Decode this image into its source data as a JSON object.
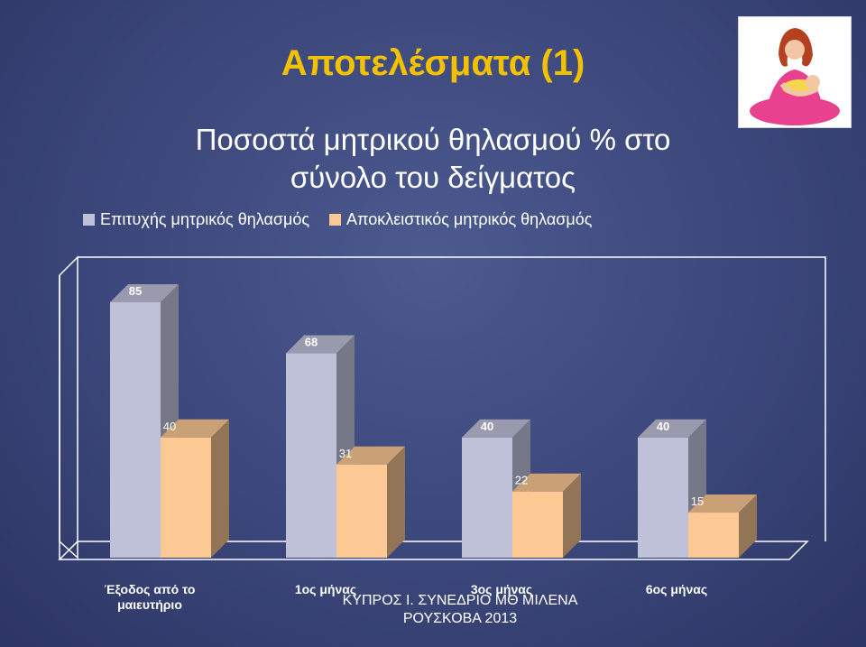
{
  "slide": {
    "title": "Αποτελέσματα (1)",
    "subtitle_line1": "Ποσοστά μητρικού θηλασμού % στο",
    "subtitle_line2": "σύνολο του δείγματος",
    "footer_line1": "ΚΥΠΡΟΣ Ι. ΣΥΝΕΔΡΙΟ ΜΘ ΜΙΛΕΝΑ",
    "footer_line2": "ΡΟΥΣΚΟΒΑ 2013"
  },
  "logo": {
    "icon": "breastfeeding-mother-icon"
  },
  "chart_data": {
    "type": "bar",
    "categories": [
      "Έξοδος από το μαιευτήριο",
      "1ος μήνας",
      "3ος μήνας",
      "6ος μήνας"
    ],
    "categories_display": [
      [
        "Έξοδος από το",
        "μαιευτήριο"
      ],
      [
        "1ος μήνας"
      ],
      [
        "3ος μήνας"
      ],
      [
        "6ος μήνας"
      ]
    ],
    "series": [
      {
        "name": "Επιτυχής μητρικός θηλασμός",
        "values": [
          85,
          68,
          40,
          40
        ],
        "color": "#bfc1d9"
      },
      {
        "name": "Αποκλειστικός μητρικός θηλασμός",
        "values": [
          40,
          31,
          22,
          15
        ],
        "color": "#fcc995"
      }
    ],
    "value_labels": [
      [
        "85",
        "68",
        "40",
        "40"
      ],
      [
        "40",
        "31",
        "22",
        "15"
      ]
    ],
    "ylim": [
      0,
      100
    ],
    "legend_position": "top",
    "grid": false,
    "style": "3d-clustered-bar"
  }
}
